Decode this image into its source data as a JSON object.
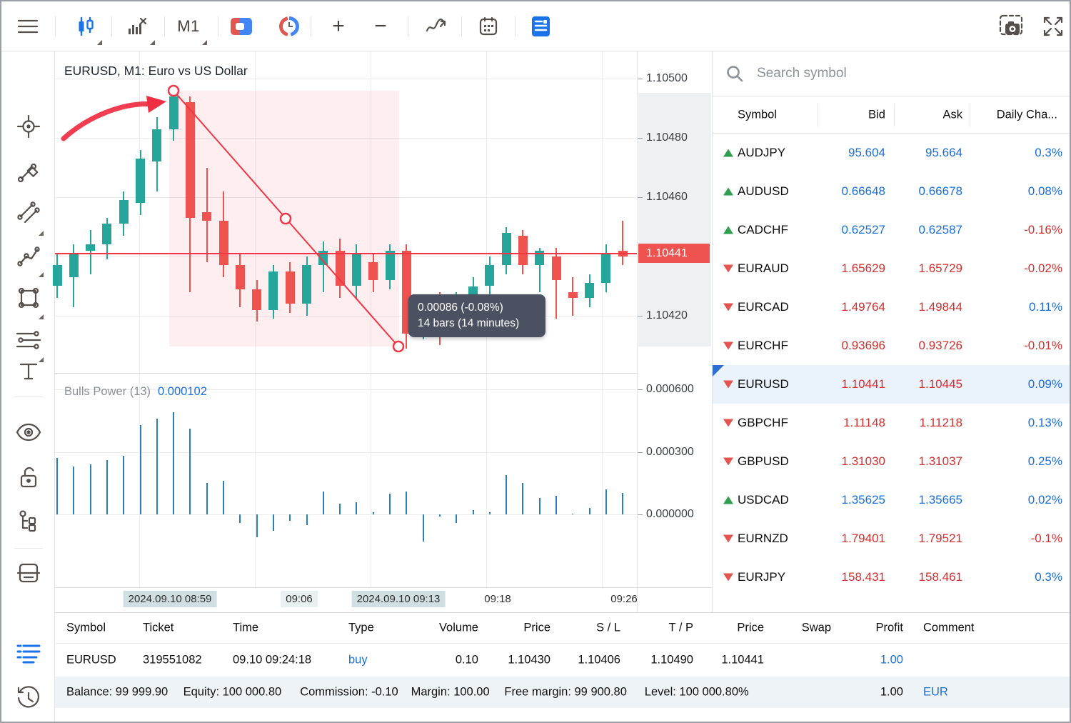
{
  "toolbar": {
    "timeframe_label": "M1",
    "zoom_in_label": "+",
    "zoom_out_label": "−"
  },
  "chart": {
    "title": "EURUSD, M1: Euro vs US Dollar",
    "current_price": "1.10441",
    "price_ticks": [
      "1.10500",
      "1.10480",
      "1.10460",
      "1.10420"
    ],
    "time_ticks": [
      {
        "label": "2024.09.10 08:59",
        "highlight": "strong"
      },
      {
        "label": "09:06",
        "highlight": "light"
      },
      {
        "label": "2024.09.10 09:13",
        "highlight": "strong"
      },
      {
        "label": "09:18",
        "highlight": "none"
      },
      {
        "label": "09:26",
        "highlight": "none"
      }
    ],
    "tooltip": {
      "line1": "0.00086 (-0.08%)",
      "line2": "14 bars (14 minutes)"
    },
    "indicator": {
      "name": "Bulls Power (13)",
      "value": "0.000102",
      "ticks": [
        "0.000600",
        "0.000300",
        "0.000000"
      ]
    }
  },
  "chart_data": {
    "type": "candlestick+histogram",
    "symbol": "EURUSD",
    "timeframe": "M1",
    "title": "EURUSD, M1: Euro vs US Dollar",
    "price_axis_ticks": [
      1.105,
      1.1048,
      1.1046,
      1.1042
    ],
    "current_price": 1.10441,
    "measure": {
      "change": 0.00086,
      "change_pct": "-0.08%",
      "bars": 14,
      "minutes": 14,
      "from": "2024.09.10 08:59",
      "to": "2024.09.10 09:13"
    },
    "candles": [
      [
        1.1043,
        1.10441,
        1.10426,
        1.10437
      ],
      [
        1.10433,
        1.10444,
        1.10423,
        1.10441
      ],
      [
        1.10442,
        1.10449,
        1.10434,
        1.10444
      ],
      [
        1.10444,
        1.10453,
        1.10439,
        1.10451
      ],
      [
        1.10451,
        1.10462,
        1.10447,
        1.10459
      ],
      [
        1.10458,
        1.10476,
        1.10454,
        1.10473
      ],
      [
        1.10472,
        1.10487,
        1.10462,
        1.10483
      ],
      [
        1.10483,
        1.10497,
        1.10479,
        1.10494
      ],
      [
        1.10492,
        1.10494,
        1.10428,
        1.10453
      ],
      [
        1.10455,
        1.1047,
        1.10438,
        1.10452
      ],
      [
        1.10452,
        1.10462,
        1.10433,
        1.10437
      ],
      [
        1.10437,
        1.10441,
        1.10423,
        1.10429
      ],
      [
        1.10429,
        1.10432,
        1.10418,
        1.10422
      ],
      [
        1.10422,
        1.10437,
        1.10419,
        1.10435
      ],
      [
        1.10435,
        1.10438,
        1.10421,
        1.10424
      ],
      [
        1.10424,
        1.1044,
        1.1042,
        1.10437
      ],
      [
        1.10437,
        1.10445,
        1.10428,
        1.10442
      ],
      [
        1.10442,
        1.10446,
        1.10426,
        1.1043
      ],
      [
        1.1043,
        1.10444,
        1.10426,
        1.10441
      ],
      [
        1.10438,
        1.10441,
        1.10428,
        1.10432
      ],
      [
        1.10432,
        1.10444,
        1.10429,
        1.10442
      ],
      [
        1.10442,
        1.10444,
        1.10409,
        1.10414
      ],
      [
        1.10419,
        1.10426,
        1.10412,
        1.10421
      ],
      [
        1.10423,
        1.10428,
        1.1041,
        1.10421
      ],
      [
        1.10421,
        1.10428,
        1.10417,
        1.10425
      ],
      [
        1.10424,
        1.10433,
        1.10421,
        1.1043
      ],
      [
        1.1043,
        1.1044,
        1.10427,
        1.10437
      ],
      [
        1.10437,
        1.1045,
        1.10434,
        1.10448
      ],
      [
        1.10447,
        1.10449,
        1.10434,
        1.10437
      ],
      [
        1.10437,
        1.10443,
        1.10428,
        1.10442
      ],
      [
        1.1044,
        1.10443,
        1.10419,
        1.10432
      ],
      [
        1.10428,
        1.10433,
        1.1042,
        1.10426
      ],
      [
        1.10426,
        1.10434,
        1.10423,
        1.10431
      ],
      [
        1.10431,
        1.10444,
        1.10428,
        1.10441
      ],
      [
        1.10442,
        1.10452,
        1.10437,
        1.1044
      ]
    ],
    "bulls_power": {
      "name": "Bulls Power (13)",
      "last_value": 0.000102,
      "values": [
        0.00027,
        0.00023,
        0.00024,
        0.00026,
        0.00028,
        0.00043,
        0.00046,
        0.00049,
        0.00041,
        0.00015,
        0.00016,
        -4e-05,
        -0.00011,
        -8e-05,
        -3e-05,
        -5e-05,
        0.00011,
        5e-05,
        6e-05,
        1e-05,
        0.0001,
        0.00011,
        -0.00013,
        -1e-05,
        -4e-05,
        2e-05,
        1e-05,
        0.00019,
        0.00015,
        8e-05,
        9e-05,
        5e-06,
        3e-05,
        0.00012,
        0.000102
      ]
    }
  },
  "market_watch": {
    "search_placeholder": "Search symbol",
    "columns": [
      "Symbol",
      "Bid",
      "Ask",
      "Daily Cha..."
    ],
    "rows": [
      {
        "symbol": "AUDJPY",
        "dir": "up",
        "bid": "95.604",
        "ask": "95.664",
        "change": "0.3%",
        "price_color": "blue",
        "change_color": "blue",
        "selected": false
      },
      {
        "symbol": "AUDUSD",
        "dir": "up",
        "bid": "0.66648",
        "ask": "0.66678",
        "change": "0.08%",
        "price_color": "blue",
        "change_color": "blue",
        "selected": false
      },
      {
        "symbol": "CADCHF",
        "dir": "up",
        "bid": "0.62527",
        "ask": "0.62587",
        "change": "-0.16%",
        "price_color": "blue",
        "change_color": "red",
        "selected": false
      },
      {
        "symbol": "EURAUD",
        "dir": "down",
        "bid": "1.65629",
        "ask": "1.65729",
        "change": "-0.02%",
        "price_color": "red",
        "change_color": "red",
        "selected": false
      },
      {
        "symbol": "EURCAD",
        "dir": "down",
        "bid": "1.49764",
        "ask": "1.49844",
        "change": "0.11%",
        "price_color": "red",
        "change_color": "blue",
        "selected": false
      },
      {
        "symbol": "EURCHF",
        "dir": "down",
        "bid": "0.93696",
        "ask": "0.93726",
        "change": "-0.01%",
        "price_color": "red",
        "change_color": "red",
        "selected": false
      },
      {
        "symbol": "EURUSD",
        "dir": "down",
        "bid": "1.10441",
        "ask": "1.10445",
        "change": "0.09%",
        "price_color": "red",
        "change_color": "blue",
        "selected": true
      },
      {
        "symbol": "GBPCHF",
        "dir": "down",
        "bid": "1.11148",
        "ask": "1.11218",
        "change": "0.13%",
        "price_color": "red",
        "change_color": "blue",
        "selected": false
      },
      {
        "symbol": "GBPUSD",
        "dir": "down",
        "bid": "1.31030",
        "ask": "1.31037",
        "change": "0.25%",
        "price_color": "red",
        "change_color": "blue",
        "selected": false
      },
      {
        "symbol": "USDCAD",
        "dir": "up",
        "bid": "1.35625",
        "ask": "1.35665",
        "change": "0.02%",
        "price_color": "blue",
        "change_color": "blue",
        "selected": false
      },
      {
        "symbol": "EURNZD",
        "dir": "down",
        "bid": "1.79401",
        "ask": "1.79521",
        "change": "-0.1%",
        "price_color": "red",
        "change_color": "red",
        "selected": false
      },
      {
        "symbol": "EURJPY",
        "dir": "down",
        "bid": "158.431",
        "ask": "158.461",
        "change": "0.3%",
        "price_color": "red",
        "change_color": "blue",
        "selected": false
      }
    ]
  },
  "positions_panel": {
    "columns": [
      "Symbol",
      "Ticket",
      "Time",
      "Type",
      "Volume",
      "Price",
      "S / L",
      "T / P",
      "Price",
      "Swap",
      "Profit",
      "Comment"
    ],
    "row": [
      "EURUSD",
      "319551082",
      "09.10 09:24:18",
      "buy",
      "0.10",
      "1.10430",
      "1.10406",
      "1.10490",
      "1.10441",
      "",
      "1.00",
      ""
    ],
    "row_type_color": "blue",
    "row_profit_color": "blue",
    "summary_segments": [
      "Balance: 99 999.90",
      "Equity: 100 000.80",
      "Commission: -0.10",
      "Margin: 100.00",
      "Free margin: 99 900.80",
      "Level: 100 000.80%"
    ],
    "summary_profit": "1.00",
    "summary_currency": "EUR"
  },
  "colors": {
    "accent_blue": "#1a6fdb",
    "value_red": "#d32f2f",
    "candle_up": "#26a69a",
    "candle_down": "#ef5350",
    "annotation_red": "#f23645",
    "histogram_blue": "#2a7fb8",
    "selected_row_bg": "#eaf2fb",
    "price_tag_bg": "#ef5350"
  }
}
